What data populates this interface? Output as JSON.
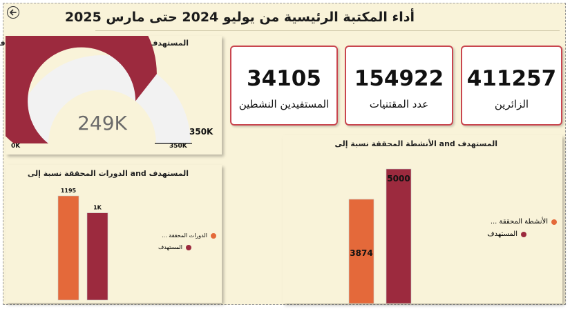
{
  "colors": {
    "background": "#f9f3d9",
    "achieved": "#e4693a",
    "target": "#9c2a3e",
    "kpi_border": "#c9464f",
    "gauge_remaining": "#f2f2f2"
  },
  "header": {
    "back_icon": "back-arrow-icon",
    "title": "أداء المكتبة الرئيسية من يوليو 2024 حتى مارس 2025"
  },
  "kpis": [
    {
      "value": "411257",
      "label": "الزائرين"
    },
    {
      "value": "154922",
      "label": "عدد المقتنيات"
    },
    {
      "value": "34105",
      "label": "المستفيدين النشطين"
    }
  ],
  "gauge": {
    "title": "المستهدف and نسبة الإعارات المحققة, المستهدف",
    "value_label": "249K",
    "target_label": "350K",
    "min_label": "0K",
    "max_label": "350K"
  },
  "chart_data": [
    {
      "type": "gauge",
      "title": "المستهدف and نسبة الإعارات المحققة, المستهدف",
      "value": 249000,
      "min": 0,
      "max": 350000,
      "target": 350000
    },
    {
      "type": "bar",
      "title": "المستهدف and الدورات المحققة نسبة إلى",
      "categories": [
        "الدورات المحققة",
        "المستهدف"
      ],
      "values": [
        1195,
        1000
      ],
      "data_labels": [
        "1195",
        "1K"
      ],
      "legend": [
        "الدورات المحققة ...",
        "المستهدف"
      ],
      "legend_position": "right"
    },
    {
      "type": "bar",
      "title": "المستهدف and الأنشطة المحققة نسبة إلى",
      "categories": [
        "الأنشطة المحققة",
        "المستهدف"
      ],
      "values": [
        3874,
        5000
      ],
      "data_labels": [
        "3874",
        "5000"
      ],
      "legend": [
        "الأنشطة المحققة ...",
        "المستهدف"
      ],
      "legend_position": "right"
    }
  ]
}
